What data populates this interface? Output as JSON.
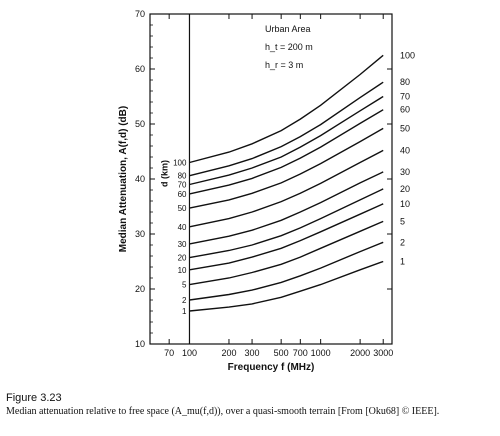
{
  "figure": {
    "label": "Figure 3.23",
    "caption": "Median attenuation relative to free space (A_mu(f,d)), over a quasi-smooth terrain [From [Oku68] © IEEE]."
  },
  "chart_data": {
    "type": "line",
    "xlabel": "Frequency  f  (MHz)",
    "ylabel": "Median  Attenuation,  A(f,d)  (dB)",
    "inner_label": "d (km)",
    "xscale": "log",
    "xlim": [
      50,
      3500
    ],
    "ylim": [
      10,
      70
    ],
    "x_ticks": [
      70,
      100,
      200,
      300,
      500,
      700,
      1000,
      2000,
      3000
    ],
    "y_ticks": [
      10,
      20,
      30,
      40,
      50,
      60,
      70
    ],
    "annotations": [
      "Urban Area",
      "h_t = 200 m",
      "h_r = 3 m"
    ],
    "grid": false,
    "x": [
      100,
      200,
      300,
      500,
      700,
      1000,
      2000,
      3000
    ],
    "series": [
      {
        "name": "1",
        "values": [
          16.0,
          16.7,
          17.3,
          18.5,
          19.6,
          20.8,
          23.5,
          25.0
        ]
      },
      {
        "name": "2",
        "values": [
          18.0,
          19.0,
          19.8,
          21.2,
          22.4,
          23.8,
          26.8,
          28.5
        ]
      },
      {
        "name": "5",
        "values": [
          20.8,
          22.0,
          23.0,
          24.5,
          25.8,
          27.4,
          30.5,
          32.3
        ]
      },
      {
        "name": "10",
        "values": [
          23.5,
          24.7,
          25.8,
          27.4,
          28.8,
          30.4,
          33.6,
          35.5
        ]
      },
      {
        "name": "20",
        "values": [
          25.7,
          27.0,
          28.0,
          29.7,
          31.1,
          32.8,
          36.2,
          38.2
        ]
      },
      {
        "name": "30",
        "values": [
          28.2,
          29.6,
          30.7,
          32.5,
          34.0,
          35.7,
          39.3,
          41.3
        ]
      },
      {
        "name": "40",
        "values": [
          31.3,
          32.8,
          34.0,
          35.9,
          37.4,
          39.2,
          43.0,
          45.2
        ]
      },
      {
        "name": "50",
        "values": [
          34.7,
          36.2,
          37.4,
          39.3,
          40.9,
          42.8,
          46.8,
          49.2
        ]
      },
      {
        "name": "60",
        "values": [
          37.3,
          38.9,
          40.1,
          42.1,
          43.8,
          45.8,
          50.1,
          52.6
        ]
      },
      {
        "name": "70",
        "values": [
          39.0,
          40.7,
          42.0,
          44.0,
          45.8,
          47.9,
          52.4,
          55.0
        ]
      },
      {
        "name": "80",
        "values": [
          40.6,
          42.4,
          43.7,
          45.9,
          47.7,
          49.9,
          54.8,
          57.6
        ]
      },
      {
        "name": "100",
        "values": [
          43.0,
          44.9,
          46.4,
          48.8,
          50.9,
          53.4,
          59.0,
          62.5
        ]
      }
    ],
    "right_scale_labels": [
      "100",
      "80",
      "70",
      "60",
      "50",
      "40",
      "30",
      "20",
      "10",
      "5",
      "2",
      "1"
    ],
    "left_scale_labels": [
      "100",
      "80",
      "70",
      "60",
      "50",
      "40",
      "30",
      "20",
      "10",
      "5",
      "2",
      "1"
    ]
  }
}
